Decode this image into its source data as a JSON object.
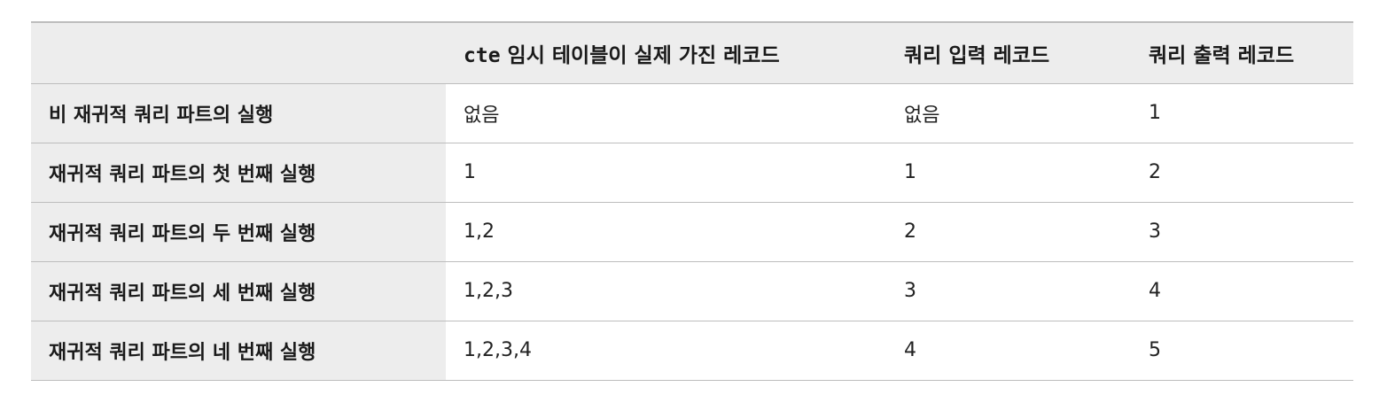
{
  "table": {
    "header": {
      "corner": "",
      "col1_code": "cte",
      "col1_rest": " 임시 테이블이 실제 가진 레코드",
      "col2": "쿼리 입력 레코드",
      "col3": "쿼리 출력 레코드"
    },
    "rows": [
      {
        "label": "비 재귀적 쿼리 파트의 실행",
        "cte_records": "없음",
        "input_records": "없음",
        "output_records": "1"
      },
      {
        "label": "재귀적 쿼리 파트의 첫 번째 실행",
        "cte_records": "1",
        "input_records": "1",
        "output_records": "2"
      },
      {
        "label": "재귀적 쿼리 파트의 두 번째 실행",
        "cte_records": "1,2",
        "input_records": "2",
        "output_records": "3"
      },
      {
        "label": "재귀적 쿼리 파트의 세 번째 실행",
        "cte_records": "1,2,3",
        "input_records": "3",
        "output_records": "4"
      },
      {
        "label": "재귀적 쿼리 파트의 네 번째 실행",
        "cte_records": "1,2,3,4",
        "input_records": "4",
        "output_records": "5"
      }
    ]
  }
}
